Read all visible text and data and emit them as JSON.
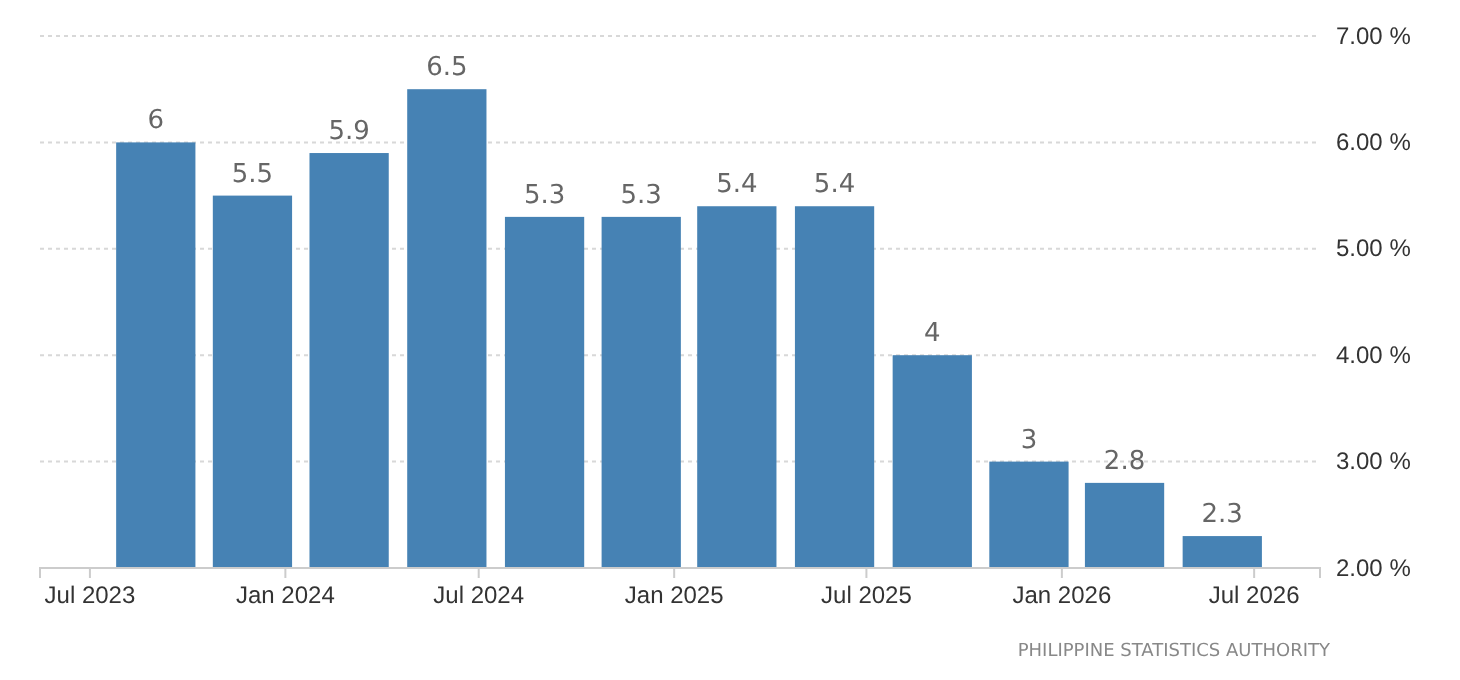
{
  "chart_data": {
    "type": "bar",
    "x": [
      "2023-09",
      "2023-12",
      "2024-03",
      "2024-06",
      "2024-09",
      "2024-12",
      "2025-03",
      "2025-06",
      "2025-09",
      "2025-12",
      "2026-03",
      "2026-06"
    ],
    "values": [
      6,
      5.5,
      5.9,
      6.5,
      5.3,
      5.3,
      5.4,
      5.4,
      4,
      3,
      2.8,
      2.3
    ],
    "color": "#4682b4",
    "xlim": [
      "2023-05-15",
      "2026-09-01"
    ],
    "xticks": [
      {
        "value": "2023-07",
        "label": "Jul 2023"
      },
      {
        "value": "2024-01",
        "label": "Jan 2024"
      },
      {
        "value": "2024-07",
        "label": "Jul 2024"
      },
      {
        "value": "2025-01",
        "label": "Jan 2025"
      },
      {
        "value": "2025-07",
        "label": "Jul 2025"
      },
      {
        "value": "2026-01",
        "label": "Jan 2026"
      },
      {
        "value": "2026-07",
        "label": "Jul 2026"
      }
    ],
    "ylim": [
      2,
      7
    ],
    "yticks": [
      {
        "value": 2,
        "label": "2.00 %"
      },
      {
        "value": 3,
        "label": "3.00 %"
      },
      {
        "value": 4,
        "label": "4.00 %"
      },
      {
        "value": 5,
        "label": "5.00 %"
      },
      {
        "value": 6,
        "label": "6.00 %"
      },
      {
        "value": 7,
        "label": "7.00 %"
      }
    ],
    "grid": "y",
    "data_labels": true,
    "annotations": [
      "PHILIPPINE STATISTICS AUTHORITY"
    ]
  }
}
